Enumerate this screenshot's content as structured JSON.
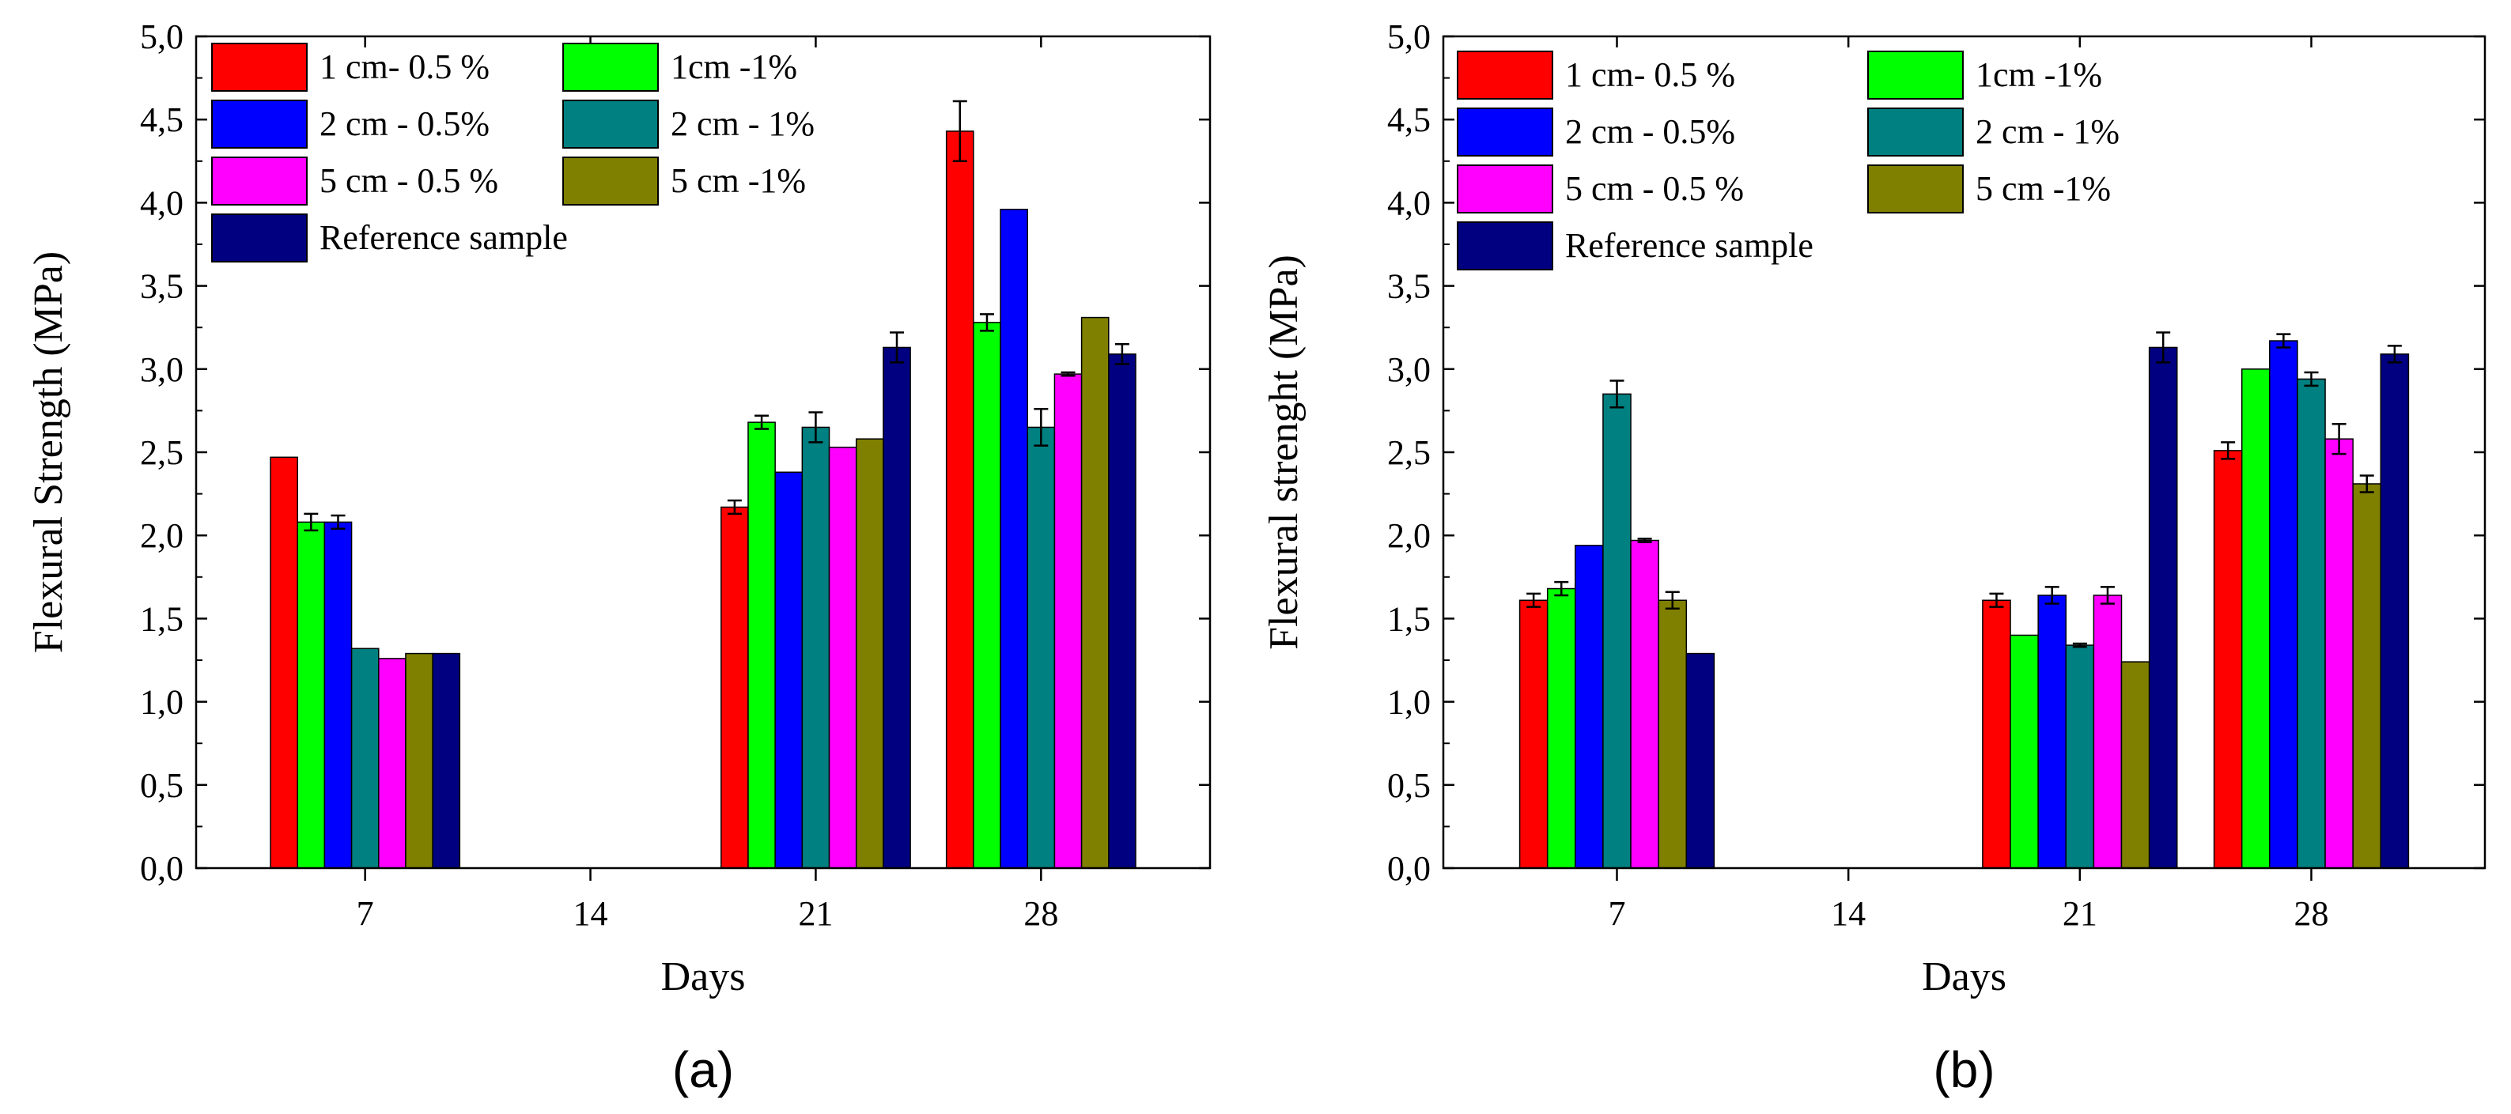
{
  "chart_data": [
    {
      "type": "bar",
      "panel_label": "(a)",
      "xlabel": "Days",
      "ylabel": "Flexural  Strength (MPa)",
      "categories": [
        "7",
        "14",
        "21",
        "28"
      ],
      "ylim": [
        0,
        5
      ],
      "yticks": [
        "0,0",
        "0,5",
        "1,0",
        "1,5",
        "2,0",
        "2,5",
        "3,0",
        "3,5",
        "4,0",
        "4,5",
        "5,0"
      ],
      "legend_position": "top-left",
      "series": [
        {
          "name": "1 cm- 0.5 %",
          "color": "#ff0000",
          "values": [
            2.47,
            null,
            2.17,
            4.43
          ],
          "errors": [
            0.0,
            null,
            0.04,
            0.18
          ]
        },
        {
          "name": "1cm -1%",
          "color": "#00ff00",
          "values": [
            2.08,
            null,
            2.68,
            3.28
          ],
          "errors": [
            0.05,
            null,
            0.04,
            0.05
          ]
        },
        {
          "name": "2 cm - 0.5%",
          "color": "#0000ff",
          "values": [
            2.08,
            null,
            2.38,
            3.96
          ],
          "errors": [
            0.04,
            null,
            0.0,
            0.0
          ]
        },
        {
          "name": "2 cm - 1%",
          "color": "#008080",
          "values": [
            1.32,
            null,
            2.65,
            2.65
          ],
          "errors": [
            0.0,
            null,
            0.09,
            0.11
          ]
        },
        {
          "name": "5 cm - 0.5 %",
          "color": "#ff00ff",
          "values": [
            1.26,
            null,
            2.53,
            2.97
          ],
          "errors": [
            0.0,
            null,
            0.0,
            0.01
          ]
        },
        {
          "name": "5 cm -1%",
          "color": "#808000",
          "values": [
            1.29,
            null,
            2.58,
            3.31
          ],
          "errors": [
            0.0,
            null,
            0.0,
            0.0
          ]
        },
        {
          "name": "Reference sample",
          "color": "#000080",
          "values": [
            1.29,
            null,
            3.13,
            3.09
          ],
          "errors": [
            0.0,
            null,
            0.09,
            0.06
          ]
        }
      ]
    },
    {
      "type": "bar",
      "panel_label": "(b)",
      "xlabel": "Days",
      "ylabel": "Flexural strenght (MPa)",
      "categories": [
        "7",
        "14",
        "21",
        "28"
      ],
      "ylim": [
        0,
        5
      ],
      "yticks": [
        "0,0",
        "0,5",
        "1,0",
        "1,5",
        "2,0",
        "2,5",
        "3,0",
        "3,5",
        "4,0",
        "4,5",
        "5,0"
      ],
      "legend_position": "top-left",
      "series": [
        {
          "name": "1 cm- 0.5 %",
          "color": "#ff0000",
          "values": [
            1.61,
            null,
            1.61,
            2.51
          ],
          "errors": [
            0.04,
            null,
            0.04,
            0.05
          ]
        },
        {
          "name": "1cm -1%",
          "color": "#00ff00",
          "values": [
            1.68,
            null,
            1.4,
            3.0
          ],
          "errors": [
            0.04,
            null,
            0.0,
            0.0
          ]
        },
        {
          "name": "2 cm - 0.5%",
          "color": "#0000ff",
          "values": [
            1.94,
            null,
            1.64,
            3.17
          ],
          "errors": [
            0.0,
            null,
            0.05,
            0.04
          ]
        },
        {
          "name": "2 cm - 1%",
          "color": "#008080",
          "values": [
            2.85,
            null,
            1.34,
            2.94
          ],
          "errors": [
            0.08,
            null,
            0.01,
            0.04
          ]
        },
        {
          "name": "5 cm - 0.5 %",
          "color": "#ff00ff",
          "values": [
            1.97,
            null,
            1.64,
            2.58
          ],
          "errors": [
            0.01,
            null,
            0.05,
            0.09
          ]
        },
        {
          "name": "5 cm -1%",
          "color": "#808000",
          "values": [
            1.61,
            null,
            1.24,
            2.31
          ],
          "errors": [
            0.05,
            null,
            0.0,
            0.05
          ]
        },
        {
          "name": "Reference sample",
          "color": "#000080",
          "values": [
            1.29,
            null,
            3.13,
            3.09
          ],
          "errors": [
            0.0,
            null,
            0.09,
            0.05
          ]
        }
      ]
    }
  ]
}
